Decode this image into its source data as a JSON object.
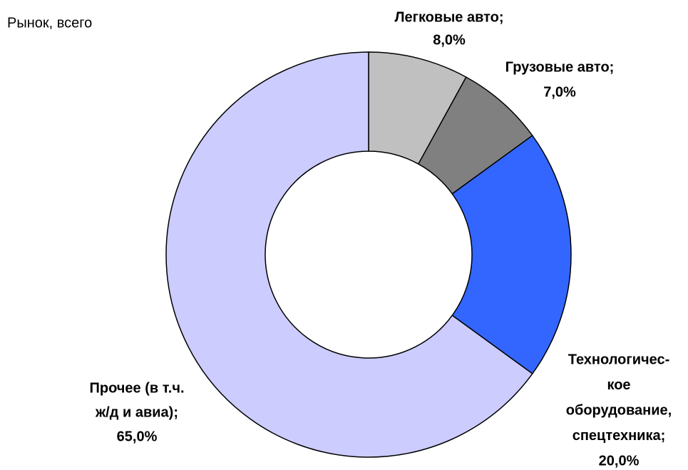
{
  "chart_data": {
    "type": "donut",
    "title": "Рынок, всего",
    "categories": [
      [
        "Легковые авто;"
      ],
      [
        "Грузовые авто;"
      ],
      [
        "Технологичес-",
        "кое",
        "оборудование,",
        "спецтехника;"
      ],
      [
        "Прочее (в т.ч.",
        "ж/д и авиа);"
      ]
    ],
    "values": [
      8,
      7,
      20,
      65
    ],
    "value_labels": [
      "8,0%",
      "7,0%",
      "20,0%",
      "65,0%"
    ],
    "colors": [
      "#c0c0c0",
      "#808080",
      "#3366ff",
      "#ccccff"
    ]
  }
}
